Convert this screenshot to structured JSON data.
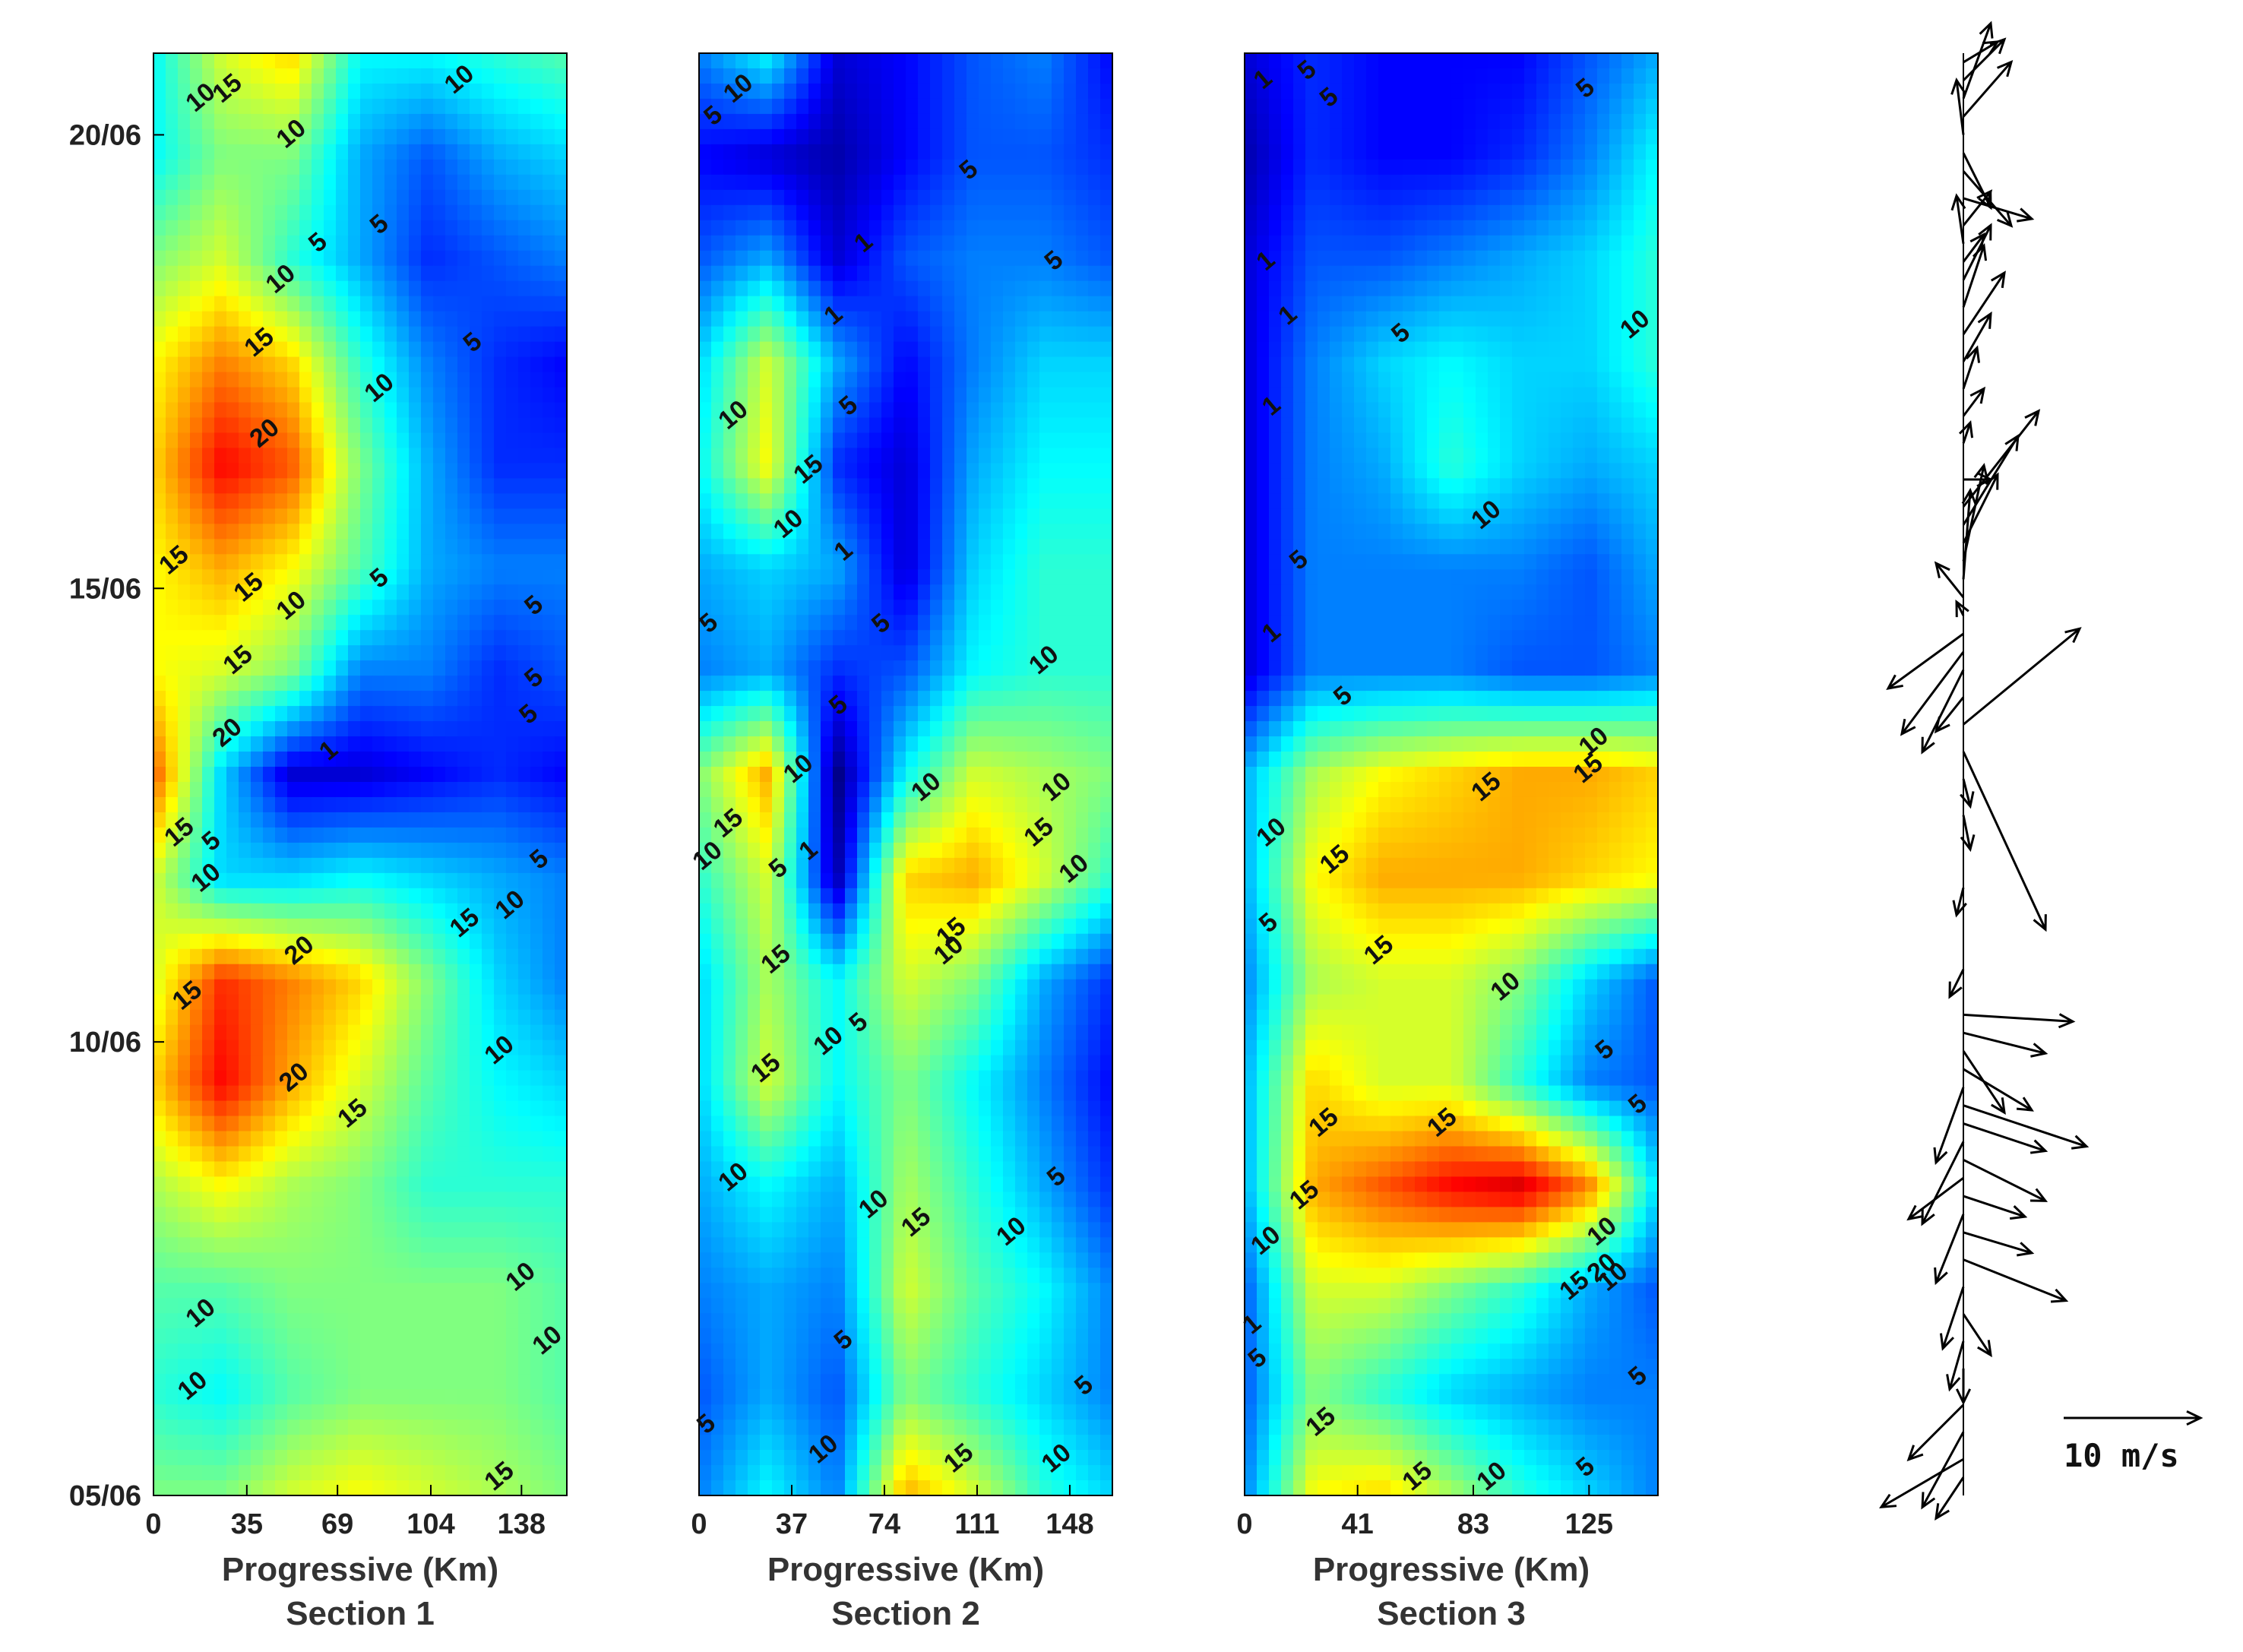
{
  "chart_data": [
    {
      "type": "heatmap",
      "panel": "Section 1",
      "xlabel": "Progressive (Km)",
      "subtitle": "Section 1",
      "xticks": [
        "0",
        "35",
        "69",
        "104",
        "138"
      ],
      "xtick_values": [
        0,
        35,
        69,
        104,
        138
      ],
      "xlim": [
        0,
        155
      ],
      "yticks": [
        "05/06",
        "10/06",
        "15/06",
        "20/06"
      ],
      "ytick_values": [
        5,
        10,
        15,
        20
      ],
      "ylim": [
        5,
        20.9
      ],
      "contour_levels": [
        1,
        5,
        10,
        15,
        20
      ],
      "contour_labels": [
        {
          "x": 18,
          "y": 20.4,
          "label": "10"
        },
        {
          "x": 28,
          "y": 20.5,
          "label": "15"
        },
        {
          "x": 115,
          "y": 20.6,
          "label": "10"
        },
        {
          "x": 52,
          "y": 20.0,
          "label": "10"
        },
        {
          "x": 85,
          "y": 19.0,
          "label": "5"
        },
        {
          "x": 62,
          "y": 18.8,
          "label": "5"
        },
        {
          "x": 48,
          "y": 18.4,
          "label": "10"
        },
        {
          "x": 40,
          "y": 17.7,
          "label": "15"
        },
        {
          "x": 85,
          "y": 17.2,
          "label": "10"
        },
        {
          "x": 120,
          "y": 17.7,
          "label": "5"
        },
        {
          "x": 42,
          "y": 16.7,
          "label": "20"
        },
        {
          "x": 8,
          "y": 15.3,
          "label": "15"
        },
        {
          "x": 36,
          "y": 15.0,
          "label": "15"
        },
        {
          "x": 52,
          "y": 14.8,
          "label": "10"
        },
        {
          "x": 85,
          "y": 15.1,
          "label": "5"
        },
        {
          "x": 143,
          "y": 14.8,
          "label": "5"
        },
        {
          "x": 32,
          "y": 14.2,
          "label": "15"
        },
        {
          "x": 143,
          "y": 14.0,
          "label": "5"
        },
        {
          "x": 141,
          "y": 13.6,
          "label": "5"
        },
        {
          "x": 28,
          "y": 13.4,
          "label": "20"
        },
        {
          "x": 66,
          "y": 13.2,
          "label": "1"
        },
        {
          "x": 10,
          "y": 12.3,
          "label": "15"
        },
        {
          "x": 22,
          "y": 12.2,
          "label": "5"
        },
        {
          "x": 20,
          "y": 11.8,
          "label": "10"
        },
        {
          "x": 145,
          "y": 12.0,
          "label": "5"
        },
        {
          "x": 134,
          "y": 11.5,
          "label": "10"
        },
        {
          "x": 117,
          "y": 11.3,
          "label": "15"
        },
        {
          "x": 55,
          "y": 11.0,
          "label": "20"
        },
        {
          "x": 13,
          "y": 10.5,
          "label": "15"
        },
        {
          "x": 130,
          "y": 9.9,
          "label": "10"
        },
        {
          "x": 53,
          "y": 9.6,
          "label": "20"
        },
        {
          "x": 75,
          "y": 9.2,
          "label": "15"
        },
        {
          "x": 138,
          "y": 7.4,
          "label": "10"
        },
        {
          "x": 18,
          "y": 7.0,
          "label": "10"
        },
        {
          "x": 148,
          "y": 6.7,
          "label": "10"
        },
        {
          "x": 15,
          "y": 6.2,
          "label": "10"
        },
        {
          "x": 130,
          "y": 5.2,
          "label": "15"
        }
      ]
    },
    {
      "type": "heatmap",
      "panel": "Section 2",
      "xlabel": "Progressive (Km)",
      "subtitle": "Section 2",
      "xticks": [
        "0",
        "37",
        "74",
        "111",
        "148"
      ],
      "xtick_values": [
        0,
        37,
        74,
        111,
        148
      ],
      "xlim": [
        0,
        165
      ],
      "ylim": [
        5,
        20.9
      ],
      "contour_levels": [
        1,
        5,
        10,
        15,
        20
      ],
      "contour_labels": [
        {
          "x": 16,
          "y": 20.5,
          "label": "10"
        },
        {
          "x": 6,
          "y": 20.2,
          "label": "5"
        },
        {
          "x": 108,
          "y": 19.6,
          "label": "5"
        },
        {
          "x": 66,
          "y": 18.8,
          "label": "1"
        },
        {
          "x": 142,
          "y": 18.6,
          "label": "5"
        },
        {
          "x": 54,
          "y": 18.0,
          "label": "1"
        },
        {
          "x": 60,
          "y": 17.0,
          "label": "5"
        },
        {
          "x": 14,
          "y": 16.9,
          "label": "10"
        },
        {
          "x": 44,
          "y": 16.3,
          "label": "15"
        },
        {
          "x": 36,
          "y": 15.7,
          "label": "10"
        },
        {
          "x": 58,
          "y": 15.4,
          "label": "1"
        },
        {
          "x": 73,
          "y": 14.6,
          "label": "5"
        },
        {
          "x": 4,
          "y": 14.6,
          "label": "5"
        },
        {
          "x": 138,
          "y": 14.2,
          "label": "10"
        },
        {
          "x": 56,
          "y": 13.7,
          "label": "5"
        },
        {
          "x": 40,
          "y": 13.0,
          "label": "10"
        },
        {
          "x": 91,
          "y": 12.8,
          "label": "10"
        },
        {
          "x": 143,
          "y": 12.8,
          "label": "10"
        },
        {
          "x": 12,
          "y": 12.4,
          "label": "15"
        },
        {
          "x": 44,
          "y": 12.1,
          "label": "1"
        },
        {
          "x": 2,
          "y": 12.0,
          "label": "10"
        },
        {
          "x": 32,
          "y": 11.9,
          "label": "5"
        },
        {
          "x": 136,
          "y": 12.3,
          "label": "15"
        },
        {
          "x": 150,
          "y": 11.9,
          "label": "10"
        },
        {
          "x": 101,
          "y": 11.2,
          "label": "15"
        },
        {
          "x": 100,
          "y": 11.0,
          "label": "10"
        },
        {
          "x": 31,
          "y": 10.9,
          "label": "15"
        },
        {
          "x": 64,
          "y": 10.2,
          "label": "5"
        },
        {
          "x": 52,
          "y": 10.0,
          "label": "10"
        },
        {
          "x": 27,
          "y": 9.7,
          "label": "15"
        },
        {
          "x": 14,
          "y": 8.5,
          "label": "10"
        },
        {
          "x": 70,
          "y": 8.2,
          "label": "10"
        },
        {
          "x": 87,
          "y": 8.0,
          "label": "15"
        },
        {
          "x": 125,
          "y": 7.9,
          "label": "10"
        },
        {
          "x": 143,
          "y": 8.5,
          "label": "5"
        },
        {
          "x": 58,
          "y": 6.7,
          "label": "5"
        },
        {
          "x": 154,
          "y": 6.2,
          "label": "5"
        },
        {
          "x": 0,
          "y": 5.7,
          "label": "5"
        },
        {
          "x": 50,
          "y": 5.5,
          "label": "10"
        },
        {
          "x": 104,
          "y": 5.4,
          "label": "15"
        },
        {
          "x": 143,
          "y": 5.4,
          "label": "10"
        }
      ]
    },
    {
      "type": "heatmap",
      "panel": "Section 3",
      "xlabel": "Progressive (Km)",
      "subtitle": "Section 3",
      "xticks": [
        "0",
        "41",
        "83",
        "125"
      ],
      "xtick_values": [
        0,
        41,
        83,
        125
      ],
      "xlim": [
        0,
        150
      ],
      "ylim": [
        5,
        20.9
      ],
      "contour_levels": [
        1,
        5,
        10,
        15,
        20
      ],
      "contour_labels": [
        {
          "x": 23,
          "y": 20.7,
          "label": "5"
        },
        {
          "x": 31,
          "y": 20.4,
          "label": "5"
        },
        {
          "x": 7,
          "y": 20.6,
          "label": "1"
        },
        {
          "x": 124,
          "y": 20.5,
          "label": "5"
        },
        {
          "x": 8,
          "y": 18.6,
          "label": "1"
        },
        {
          "x": 16,
          "y": 18.0,
          "label": "1"
        },
        {
          "x": 57,
          "y": 17.8,
          "label": "5"
        },
        {
          "x": 142,
          "y": 17.9,
          "label": "10"
        },
        {
          "x": 10,
          "y": 17.0,
          "label": "1"
        },
        {
          "x": 88,
          "y": 15.8,
          "label": "10"
        },
        {
          "x": 20,
          "y": 15.3,
          "label": "5"
        },
        {
          "x": 10,
          "y": 14.5,
          "label": "1"
        },
        {
          "x": 36,
          "y": 13.8,
          "label": "5"
        },
        {
          "x": 127,
          "y": 13.3,
          "label": "10"
        },
        {
          "x": 125,
          "y": 13.0,
          "label": "15"
        },
        {
          "x": 88,
          "y": 12.8,
          "label": "15"
        },
        {
          "x": 10,
          "y": 12.3,
          "label": "10"
        },
        {
          "x": 33,
          "y": 12.0,
          "label": "15"
        },
        {
          "x": 9,
          "y": 11.3,
          "label": "5"
        },
        {
          "x": 49,
          "y": 11.0,
          "label": "15"
        },
        {
          "x": 95,
          "y": 10.6,
          "label": "10"
        },
        {
          "x": 131,
          "y": 9.9,
          "label": "5"
        },
        {
          "x": 143,
          "y": 9.3,
          "label": "5"
        },
        {
          "x": 29,
          "y": 9.1,
          "label": "15"
        },
        {
          "x": 72,
          "y": 9.1,
          "label": "15"
        },
        {
          "x": 22,
          "y": 8.3,
          "label": "15"
        },
        {
          "x": 8,
          "y": 7.8,
          "label": "10"
        },
        {
          "x": 130,
          "y": 7.9,
          "label": "10"
        },
        {
          "x": 130,
          "y": 7.5,
          "label": "20"
        },
        {
          "x": 120,
          "y": 7.3,
          "label": "15"
        },
        {
          "x": 134,
          "y": 7.4,
          "label": "10"
        },
        {
          "x": 0,
          "y": 6.8,
          "label": "1"
        },
        {
          "x": 5,
          "y": 6.5,
          "label": "5"
        },
        {
          "x": 143,
          "y": 6.3,
          "label": "5"
        },
        {
          "x": 28,
          "y": 5.8,
          "label": "15"
        },
        {
          "x": 63,
          "y": 5.2,
          "label": "15"
        },
        {
          "x": 90,
          "y": 5.2,
          "label": "10"
        },
        {
          "x": 124,
          "y": 5.3,
          "label": "5"
        }
      ]
    },
    {
      "type": "vector",
      "panel": "wind",
      "scale_label": "10 m/s",
      "scale_value_ms": 10,
      "ylim": [
        5,
        20.9
      ],
      "vectors": [
        {
          "t": 20.8,
          "u": 2.5,
          "v": 1.5
        },
        {
          "t": 20.6,
          "u": 3.0,
          "v": 3.0
        },
        {
          "t": 20.4,
          "u": 2.0,
          "v": 5.5
        },
        {
          "t": 20.2,
          "u": 3.5,
          "v": 4.0
        },
        {
          "t": 20.0,
          "u": -0.5,
          "v": 4.0
        },
        {
          "t": 19.8,
          "u": 2.0,
          "v": -4.0
        },
        {
          "t": 19.6,
          "u": 3.5,
          "v": -4.0
        },
        {
          "t": 19.3,
          "u": 5.0,
          "v": -1.5
        },
        {
          "t": 19.0,
          "u": 2.0,
          "v": 2.5
        },
        {
          "t": 18.8,
          "u": -0.5,
          "v": 3.5
        },
        {
          "t": 18.6,
          "u": 1.5,
          "v": 2.0
        },
        {
          "t": 18.4,
          "u": 2.0,
          "v": 4.0
        },
        {
          "t": 18.1,
          "u": 1.5,
          "v": 4.5
        },
        {
          "t": 17.8,
          "u": 3.0,
          "v": 4.5
        },
        {
          "t": 17.5,
          "u": 2.0,
          "v": 3.5
        },
        {
          "t": 17.2,
          "u": 1.0,
          "v": 3.0
        },
        {
          "t": 16.9,
          "u": 1.5,
          "v": 2.0
        },
        {
          "t": 16.6,
          "u": 0.5,
          "v": 1.5
        },
        {
          "t": 16.2,
          "u": 2.0,
          "v": 0.0
        },
        {
          "t": 15.9,
          "u": 5.5,
          "v": 7.0
        },
        {
          "t": 15.7,
          "u": 4.0,
          "v": 6.5
        },
        {
          "t": 15.5,
          "u": 2.5,
          "v": 5.0
        },
        {
          "t": 15.3,
          "u": 1.5,
          "v": 7.0
        },
        {
          "t": 15.1,
          "u": 0.5,
          "v": 6.5
        },
        {
          "t": 14.9,
          "u": -2.0,
          "v": 2.5
        },
        {
          "t": 14.7,
          "u": -0.5,
          "v": 1.0
        },
        {
          "t": 14.5,
          "u": -5.5,
          "v": -4.0
        },
        {
          "t": 14.3,
          "u": -4.5,
          "v": -6.0
        },
        {
          "t": 14.1,
          "u": -3.0,
          "v": -6.0
        },
        {
          "t": 13.8,
          "u": -2.0,
          "v": -2.5
        },
        {
          "t": 13.5,
          "u": 8.5,
          "v": 7.0
        },
        {
          "t": 13.2,
          "u": 6.0,
          "v": -13.0
        },
        {
          "t": 12.9,
          "u": 0.5,
          "v": -2.0
        },
        {
          "t": 12.5,
          "u": 0.5,
          "v": -2.5
        },
        {
          "t": 11.7,
          "u": -0.5,
          "v": -2.0
        },
        {
          "t": 10.8,
          "u": -1.0,
          "v": -2.0
        },
        {
          "t": 10.3,
          "u": 8.0,
          "v": -0.5
        },
        {
          "t": 10.1,
          "u": 6.0,
          "v": -1.5
        },
        {
          "t": 9.9,
          "u": 3.0,
          "v": -4.5
        },
        {
          "t": 9.7,
          "u": 5.0,
          "v": -3.0
        },
        {
          "t": 9.5,
          "u": -2.0,
          "v": -5.5
        },
        {
          "t": 9.3,
          "u": 9.0,
          "v": -3.0
        },
        {
          "t": 9.1,
          "u": 6.0,
          "v": -2.0
        },
        {
          "t": 8.9,
          "u": -3.0,
          "v": -6.0
        },
        {
          "t": 8.7,
          "u": 6.0,
          "v": -3.0
        },
        {
          "t": 8.5,
          "u": -4.0,
          "v": -3.0
        },
        {
          "t": 8.3,
          "u": 4.5,
          "v": -1.5
        },
        {
          "t": 8.1,
          "u": -2.0,
          "v": -5.0
        },
        {
          "t": 7.9,
          "u": 5.0,
          "v": -1.5
        },
        {
          "t": 7.6,
          "u": 7.5,
          "v": -3.0
        },
        {
          "t": 7.3,
          "u": -1.5,
          "v": -4.5
        },
        {
          "t": 7.0,
          "u": 2.0,
          "v": -3.0
        },
        {
          "t": 6.7,
          "u": -1.0,
          "v": -3.5
        },
        {
          "t": 6.4,
          "u": 0.0,
          "v": -2.5
        },
        {
          "t": 6.0,
          "u": -4.0,
          "v": -4.0
        },
        {
          "t": 5.7,
          "u": -3.0,
          "v": -5.5
        },
        {
          "t": 5.4,
          "u": -6.0,
          "v": -3.5
        },
        {
          "t": 5.2,
          "u": -2.0,
          "v": -3.0
        }
      ]
    }
  ]
}
